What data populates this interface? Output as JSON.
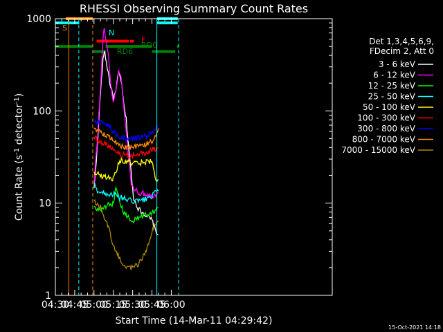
{
  "chart_data": {
    "type": "line",
    "title": "RHESSI Observing Summary Count Rates",
    "xlabel": "Start Time (14-Mar-11 04:29:42)",
    "ylabel_main": "Count Rate (s",
    "ylabel_sup1": "-1",
    "ylabel_mid": " detector",
    "ylabel_sup2": "-1",
    "ylabel_end": ")",
    "yscale": "log",
    "ylim": [
      1,
      1000
    ],
    "xlim_min": [
      270,
      485
    ],
    "x_ticks": [
      {
        "m": 270,
        "label": "04:30"
      },
      {
        "m": 285,
        "label": "04:45"
      },
      {
        "m": 300,
        "label": "05:00"
      },
      {
        "m": 315,
        "label": "05:15"
      },
      {
        "m": 330,
        "label": "05:30"
      },
      {
        "m": 345,
        "label": "05:45"
      },
      {
        "m": 360,
        "label": "06:00"
      }
    ],
    "y_ticks": [
      {
        "v": 1,
        "label": "1"
      },
      {
        "v": 10,
        "label": "10"
      },
      {
        "v": 100,
        "label": "100"
      },
      {
        "v": 1000,
        "label": "1000"
      }
    ],
    "legend_header": [
      "Det 1,3,4,5,6,9,",
      "FDecim 2, Att 0"
    ],
    "legend_position": "right",
    "series": [
      {
        "name": "3 - 6 keV",
        "color": "#ffffff",
        "x": [
          300,
          303,
          305,
          307,
          308,
          309,
          311,
          313,
          315,
          317,
          319,
          321,
          323,
          325,
          327,
          329,
          330,
          331,
          335,
          340,
          345,
          348,
          350
        ],
        "y": [
          14,
          50,
          160,
          350,
          460,
          380,
          260,
          180,
          140,
          160,
          260,
          220,
          120,
          80,
          40,
          20,
          14,
          11,
          8.5,
          7.5,
          6.5,
          5,
          4.5
        ]
      },
      {
        "name": "6 - 12 keV",
        "color": "#ff00ff",
        "x": [
          300,
          303,
          305,
          307,
          308,
          309,
          311,
          313,
          315,
          317,
          319,
          321,
          323,
          325,
          327,
          329,
          331,
          335,
          340,
          345,
          348,
          350
        ],
        "y": [
          16,
          60,
          180,
          600,
          850,
          600,
          420,
          200,
          120,
          160,
          270,
          230,
          120,
          60,
          30,
          16,
          14,
          13,
          12.5,
          12,
          12.5,
          13
        ]
      },
      {
        "name": "12 - 25 keV",
        "color": "#00ff00",
        "x": [
          300,
          302,
          305,
          308,
          311,
          314,
          317,
          320,
          323,
          326,
          330,
          335,
          340,
          345,
          348,
          350
        ],
        "y": [
          9,
          8.5,
          8.5,
          9,
          9.5,
          9,
          14,
          10,
          8,
          7,
          6.5,
          7,
          7.5,
          8,
          8.5,
          9
        ]
      },
      {
        "name": "25 - 50 keV",
        "color": "#00ffff",
        "x": [
          300,
          302,
          305,
          308,
          312,
          315,
          320,
          325,
          330,
          335,
          340,
          345,
          348,
          350
        ],
        "y": [
          16,
          14,
          13,
          13,
          12.5,
          12.5,
          11.5,
          11,
          10.5,
          10.5,
          11,
          12,
          13,
          13.5
        ]
      },
      {
        "name": "50 - 100 keV",
        "color": "#ffff00",
        "x": [
          300,
          302,
          305,
          310,
          315,
          320,
          325,
          330,
          335,
          340,
          345,
          348,
          350
        ],
        "y": [
          22,
          21,
          20,
          19,
          18.5,
          29,
          28,
          27,
          27,
          28,
          29,
          17,
          18
        ]
      },
      {
        "name": "100 - 300 keV",
        "color": "#ff0000",
        "x": [
          300,
          303,
          306,
          309,
          312,
          315,
          318,
          320,
          325,
          330,
          335,
          340,
          345,
          348,
          350
        ],
        "y": [
          53,
          48,
          46,
          44,
          42,
          38,
          36,
          34,
          33,
          33,
          34,
          35,
          38,
          39,
          40
        ]
      },
      {
        "name": "300 - 800 keV",
        "color": "#0000ff",
        "x": [
          300,
          303,
          306,
          309,
          312,
          315,
          318,
          320,
          325,
          330,
          335,
          340,
          345,
          348,
          350
        ],
        "y": [
          78,
          76,
          74,
          72,
          68,
          60,
          55,
          52,
          50,
          50,
          51,
          53,
          58,
          63,
          67
        ]
      },
      {
        "name": "800 - 7000 keV",
        "color": "#ff8c00",
        "x": [
          300,
          303,
          306,
          309,
          312,
          315,
          318,
          320,
          325,
          330,
          335,
          340,
          345,
          348,
          350
        ],
        "y": [
          66,
          62,
          58,
          55,
          52,
          48,
          45,
          42,
          40,
          40,
          41,
          43,
          47,
          55,
          65
        ]
      },
      {
        "name": "7000 - 15000 keV",
        "color": "#b08a00",
        "x": [
          300,
          302,
          305,
          308,
          310,
          312,
          315,
          320,
          325,
          330,
          335,
          340,
          343,
          345,
          348,
          350
        ],
        "y": [
          11,
          10,
          9,
          7,
          6,
          5,
          3.5,
          2.5,
          2,
          2,
          2.2,
          3,
          4,
          5,
          6,
          6.5
        ]
      }
    ],
    "vertical_lines": [
      {
        "m": 280.5,
        "color": "#ff8c00",
        "style": "solid"
      },
      {
        "m": 288.2,
        "color": "#00ffff",
        "style": "dashed"
      },
      {
        "m": 299.0,
        "color": "#ff8c00",
        "style": "dashed"
      },
      {
        "m": 348.8,
        "color": "#00ffff",
        "style": "solid"
      },
      {
        "m": 365.7,
        "color": "#00ffff",
        "style": "dashed"
      }
    ],
    "flag_labels": [
      {
        "text": "S",
        "color": "#ff8c00"
      },
      {
        "text": "N",
        "color": "#00ffff"
      },
      {
        "text": "F",
        "color": "#ff0000"
      },
      {
        "text": "RD0",
        "color": "#008000"
      },
      {
        "text": "RD6",
        "color": "#008000"
      }
    ],
    "flag_bars": [
      {
        "color": "#ff8c00",
        "y": 1000,
        "segments": [
          [
            278,
            299
          ]
        ]
      },
      {
        "color": "#00ffff",
        "y": 900,
        "segments": [
          [
            270,
            288.5
          ],
          [
            349,
            365
          ]
        ]
      },
      {
        "color": "#00ffff",
        "y": 1000,
        "segments": [
          [
            349,
            365
          ]
        ]
      },
      {
        "color": "#ff0000",
        "y": 570,
        "segments": [
          [
            302,
            327
          ],
          [
            328,
            331
          ]
        ]
      },
      {
        "color": "#008000",
        "y": 500,
        "segments": [
          [
            270,
            299
          ],
          [
            309,
            345
          ],
          [
            364.5,
            366
          ]
        ]
      },
      {
        "color": "#008000",
        "y": 440,
        "segments": [
          [
            299,
            309
          ],
          [
            345,
            363
          ]
        ]
      }
    ],
    "grid": false
  },
  "footer": {
    "date": "15-Oct-2021 14:18"
  }
}
